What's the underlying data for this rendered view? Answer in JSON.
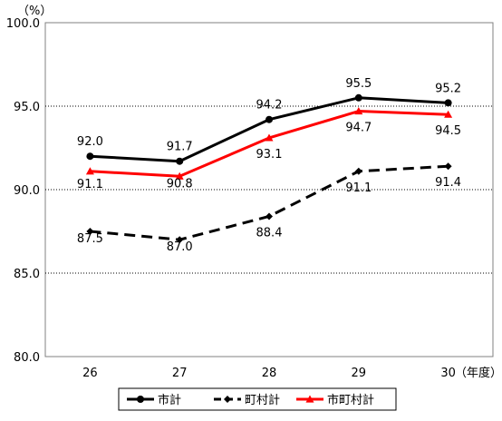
{
  "chart_data": {
    "type": "line",
    "categories": [
      "26",
      "27",
      "28",
      "29",
      "30"
    ],
    "x_unit": "（年度）",
    "y_unit": "（%）",
    "ylim": [
      80.0,
      100.0
    ],
    "yticks": [
      "80.0",
      "85.0",
      "90.0",
      "95.0",
      "100.0"
    ],
    "grid": "horizontal-dotted",
    "legend_position": "bottom",
    "series": [
      {
        "name": "市計",
        "values": [
          92.0,
          91.7,
          94.2,
          95.5,
          95.2
        ],
        "labels": [
          "92.0",
          "91.7",
          "94.2",
          "95.5",
          "95.2"
        ],
        "color": "#000000",
        "dash": "solid",
        "marker": "circle"
      },
      {
        "name": "町村計",
        "values": [
          87.5,
          87.0,
          88.4,
          91.1,
          91.4
        ],
        "labels": [
          "87.5",
          "87.0",
          "88.4",
          "91.1",
          "91.4"
        ],
        "color": "#000000",
        "dash": "dashed",
        "marker": "diamond"
      },
      {
        "name": "市町村計",
        "values": [
          91.1,
          90.8,
          93.1,
          94.7,
          94.5
        ],
        "labels": [
          "91.1",
          "90.8",
          "93.1",
          "94.7",
          "94.5"
        ],
        "color": "#ff0000",
        "dash": "solid",
        "marker": "triangle"
      }
    ]
  }
}
